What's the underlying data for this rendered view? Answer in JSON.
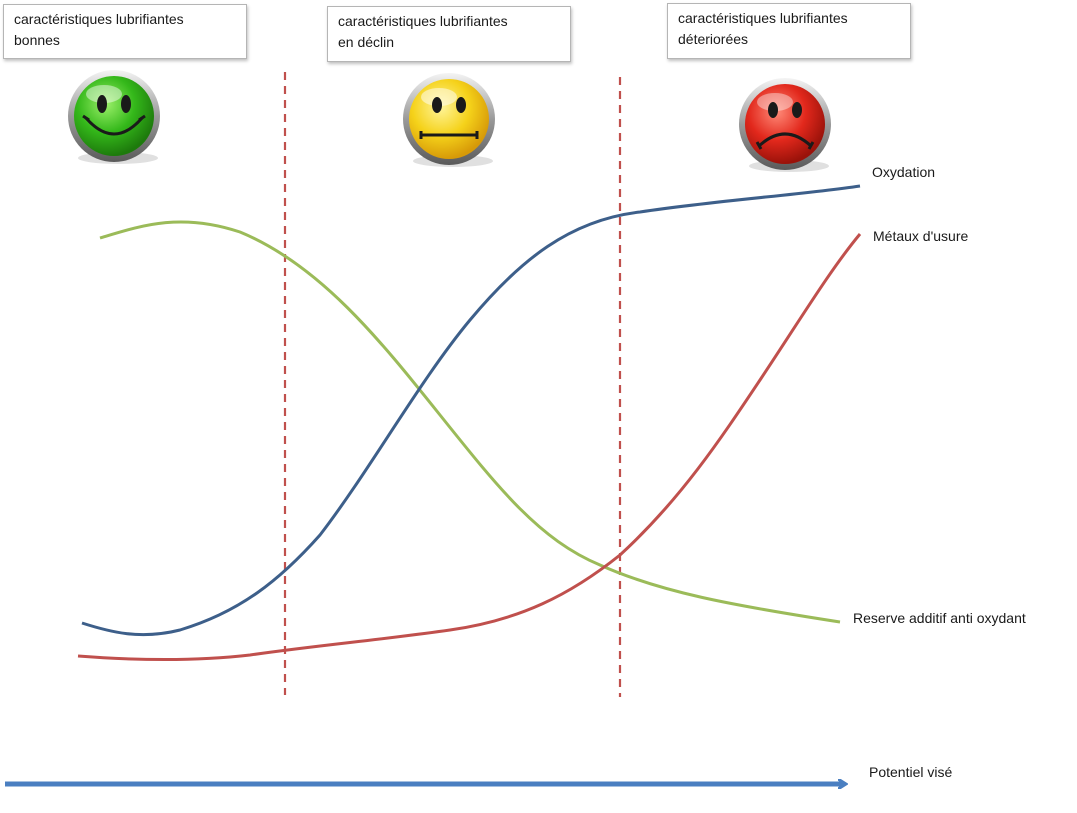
{
  "phases": [
    {
      "line1": "caractéristiques lubrifiantes",
      "line2": "bonnes",
      "face": "happy-face-icon",
      "color": "#3cc21e"
    },
    {
      "line1": "caractéristiques lubrifiantes",
      "line2": "en déclin",
      "face": "neutral-face-icon",
      "color": "#f2d21a"
    },
    {
      "line1": "caractéristiques lubrifiantes",
      "line2": "déteriorées",
      "face": "sad-face-icon",
      "color": "#e0251a"
    }
  ],
  "curves": {
    "oxidation": {
      "label": "Oxydation",
      "color": "#3d5f8a"
    },
    "wear_metals": {
      "label": "Métaux d'usure",
      "color": "#c0504d"
    },
    "antioxidant_reserve": {
      "label": "Reserve additif anti oxydant",
      "color": "#9bbb59"
    }
  },
  "axis": {
    "label": "Potentiel visé",
    "color": "#4a7fc1"
  },
  "divider_color": "#c0504d"
}
